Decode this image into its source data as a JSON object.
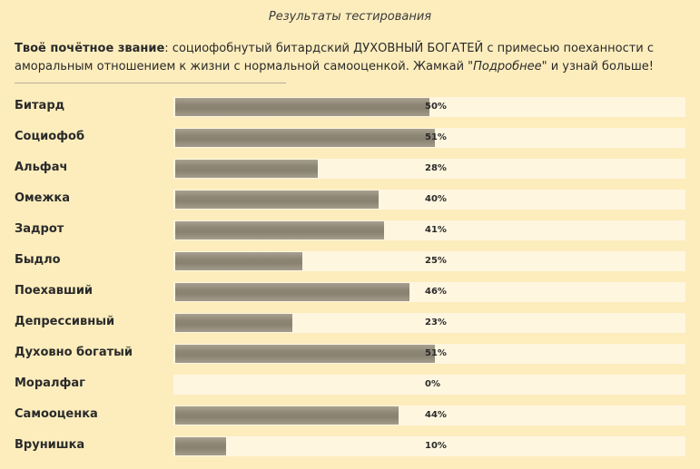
{
  "title": "Результаты тестирования",
  "verdict": {
    "label": "Твоё почётное звание",
    "text_before": ": социофобнутый битардский ДУХОВНЫЙ БОГАТЕЙ с примесью поеханности с аморальным отношением к жизни с нормальной самооценкой. Жамкай \"",
    "link_word": "Подробнее",
    "text_after": "\" и узнай больше!"
  },
  "results": [
    {
      "label": "Битард",
      "value": 50,
      "text": "50%"
    },
    {
      "label": "Социофоб",
      "value": 51,
      "text": "51%"
    },
    {
      "label": "Альфач",
      "value": 28,
      "text": "28%"
    },
    {
      "label": "Омежка",
      "value": 40,
      "text": "40%"
    },
    {
      "label": "Задрот",
      "value": 41,
      "text": "41%"
    },
    {
      "label": "Быдло",
      "value": 25,
      "text": "25%"
    },
    {
      "label": "Поехавший",
      "value": 46,
      "text": "46%"
    },
    {
      "label": "Депрессивный",
      "value": 23,
      "text": "23%"
    },
    {
      "label": "Духовно богатый",
      "value": 51,
      "text": "51%"
    },
    {
      "label": "Моралфаг",
      "value": 0,
      "text": "0%"
    },
    {
      "label": "Самооценка",
      "value": 44,
      "text": "44%"
    },
    {
      "label": "Врунишка",
      "value": 10,
      "text": "10%"
    }
  ]
}
